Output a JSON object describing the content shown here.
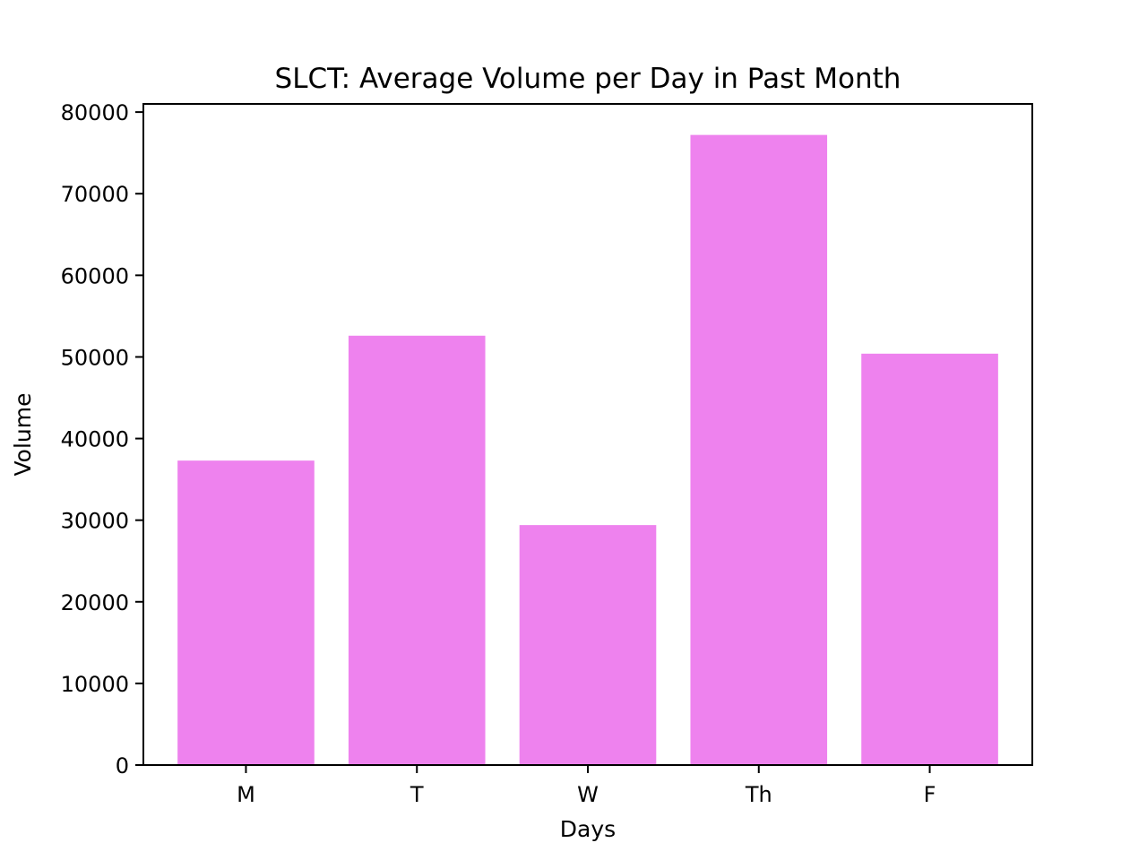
{
  "chart_data": {
    "type": "bar",
    "title": "SLCT: Average Volume per Day in Past Month",
    "xlabel": "Days",
    "ylabel": "Volume",
    "categories": [
      "M",
      "T",
      "W",
      "Th",
      "F"
    ],
    "values": [
      37300,
      52600,
      29400,
      77200,
      50400
    ],
    "ylim": [
      0,
      81000
    ],
    "yticks": [
      0,
      10000,
      20000,
      30000,
      40000,
      50000,
      60000,
      70000,
      80000
    ],
    "grid": false,
    "bar_color": "#ee82ee"
  }
}
